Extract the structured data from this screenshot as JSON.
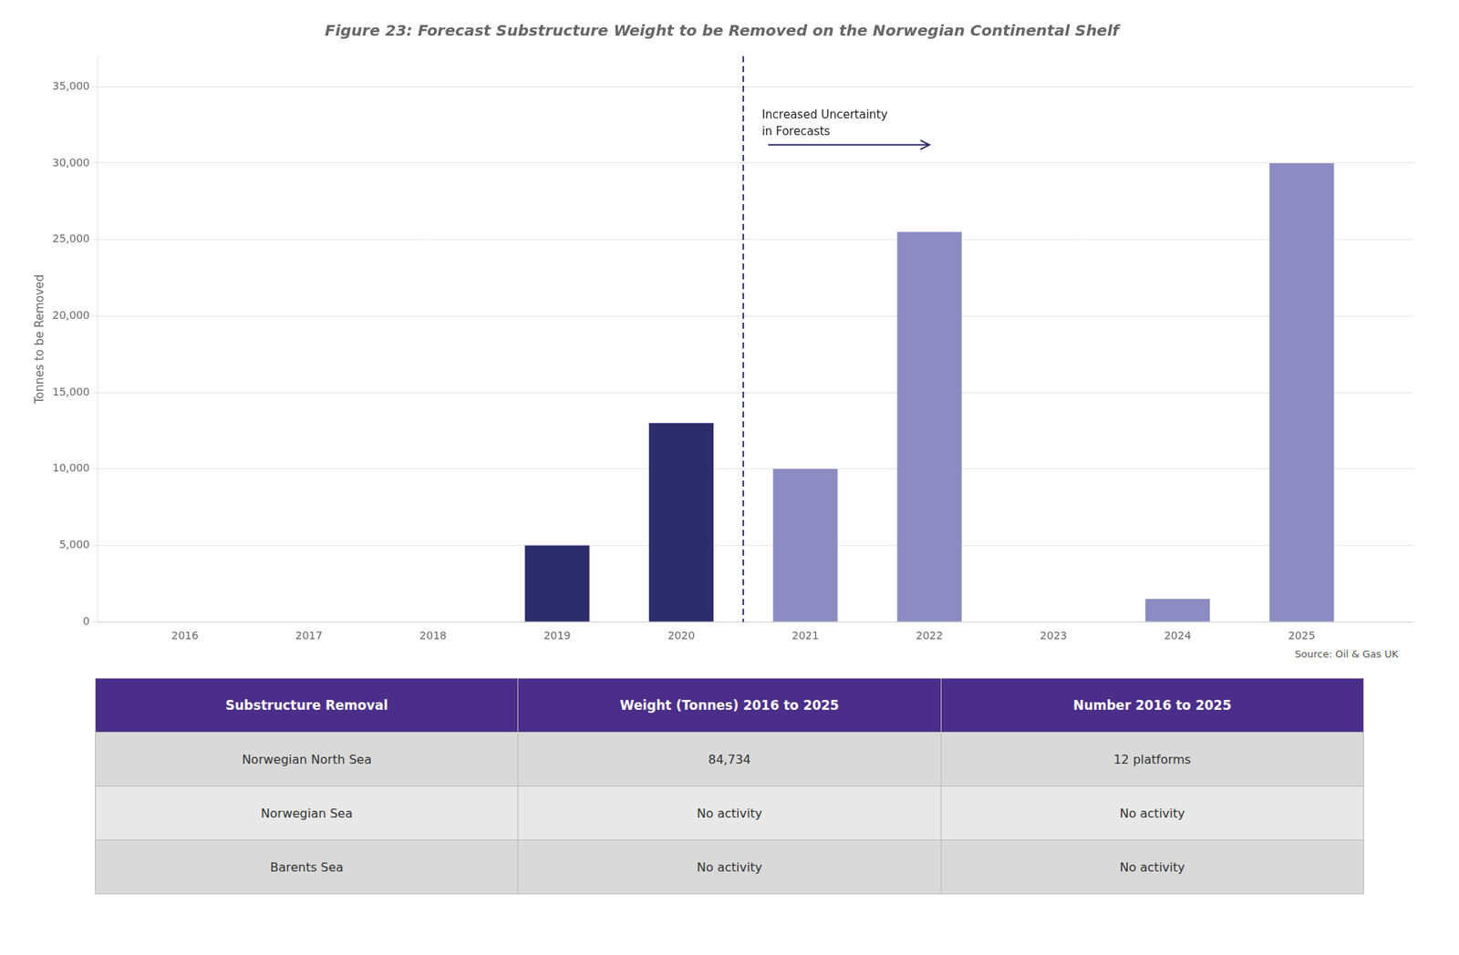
{
  "chart_data": {
    "type": "bar",
    "title": "Figure 23: Forecast Substructure Weight to be Removed on the Norwegian Continental Shelf",
    "ylabel": "Tonnes to be Removed",
    "source": "Source: Oil & Gas UK",
    "x": [
      2016,
      2017,
      2018,
      2019,
      2020,
      2021,
      2022,
      2023,
      2024,
      2025
    ],
    "values": [
      0,
      0,
      0,
      5000,
      13000,
      10000,
      25500,
      0,
      1500,
      30000
    ],
    "colors": [
      "#2E2D6B",
      "#2E2D6B",
      "#2E2D6B",
      "#2E2D6B",
      "#2E2D6B",
      "#8C8BC2",
      "#8C8BC2",
      "#8C8BC2",
      "#8C8BC2",
      "#8C8BC2"
    ],
    "xlim": [
      2015.3,
      2025.9
    ],
    "xticks": [
      2016,
      2017,
      2018,
      2019,
      2020,
      2021,
      2022,
      2023,
      2024,
      2025
    ],
    "ylim": [
      0,
      37000
    ],
    "yticks": [
      0,
      {
        "value": 5000,
        "label": "5,000"
      },
      {
        "value": 10000,
        "label": "10,000"
      },
      {
        "value": 15000,
        "label": "15,000"
      },
      {
        "value": 20000,
        "label": "20,000"
      },
      {
        "value": 25000,
        "label": "25,000"
      },
      {
        "value": 30000,
        "label": "30,000"
      },
      {
        "value": 35000,
        "label": "35,000"
      }
    ],
    "grid": "y",
    "reference_lines": [
      {
        "x": 2020.5,
        "color": "#2E2D6B",
        "line_style": "dashed"
      }
    ],
    "annotations": [
      {
        "text": "Increased Uncertainty\nin Forecasts",
        "x": 2020.65,
        "y": 33500
      }
    ],
    "arrows": [
      {
        "x_start": 2020.7,
        "x_end": 2022.0,
        "y": 31200,
        "color": "#2E2D6B"
      }
    ],
    "table": {
      "header": [
        "Substructure Removal",
        "Weight (Tonnes) 2016 to 2025",
        "Number 2016 to 2025"
      ],
      "rows": [
        [
          "Norwegian North Sea",
          "84,734",
          "12 platforms"
        ],
        [
          "Norwegian Sea",
          "No activity",
          "No activity"
        ],
        [
          "Barents Sea",
          "No activity",
          "No activity"
        ]
      ]
    }
  }
}
